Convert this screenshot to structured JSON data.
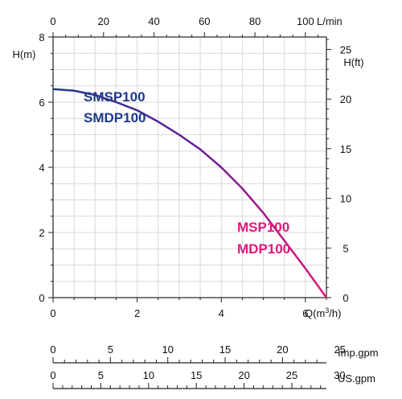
{
  "chart_data": {
    "type": "line",
    "title": "",
    "x_label": "Q(m³/h)",
    "x_unit_prefix": "Q(m",
    "x_unit_sup": "3",
    "x_unit_suffix": "/h)",
    "x_ticks": [
      "0",
      "2",
      "4",
      "6"
    ],
    "xlim": [
      0,
      6.5
    ],
    "y_label": "H(m)",
    "y_ticks": [
      "0",
      "2",
      "4",
      "6",
      "8"
    ],
    "ylim": [
      0,
      8
    ],
    "grid": true,
    "top_axis": {
      "label": "L/min",
      "ticks": [
        "0",
        "20",
        "40",
        "60",
        "80",
        "100"
      ],
      "range": [
        0,
        108.33
      ]
    },
    "right_axis": {
      "label": "H(ft)",
      "ticks": [
        "0",
        "5",
        "10",
        "15",
        "20",
        "25"
      ],
      "range": [
        0,
        26.25
      ]
    },
    "imp_axis": {
      "label": "Imp.gpm",
      "ticks": [
        "0",
        "5",
        "10",
        "15",
        "20",
        "25"
      ],
      "range": [
        0,
        23.83
      ]
    },
    "us_axis": {
      "label": "US.gpm",
      "ticks": [
        "0",
        "5",
        "10",
        "15",
        "20",
        "25",
        "30"
      ],
      "range": [
        0,
        28.62
      ]
    },
    "series": [
      {
        "name": "SMSP100 / SMDP100 / MSP100 / MDP100",
        "x": [
          0,
          0.5,
          1.0,
          1.5,
          2.0,
          2.5,
          3.0,
          3.5,
          4.0,
          4.5,
          5.0,
          5.5,
          6.0,
          6.5
        ],
        "y": [
          6.4,
          6.35,
          6.22,
          6.0,
          5.75,
          5.4,
          5.0,
          4.55,
          4.0,
          3.35,
          2.6,
          1.75,
          0.9,
          0.0
        ],
        "color_start": "#1e3a8c",
        "color_mid": "#6a1a9a",
        "color_end": "#e0177a"
      }
    ],
    "annotations": [
      {
        "text": "SMSP100",
        "color": "#1e3a8c"
      },
      {
        "text": "SMDP100",
        "color": "#1e3a8c"
      },
      {
        "text": "MSP100",
        "color": "#e0177a"
      },
      {
        "text": "MDP100",
        "color": "#e0177a"
      }
    ]
  }
}
